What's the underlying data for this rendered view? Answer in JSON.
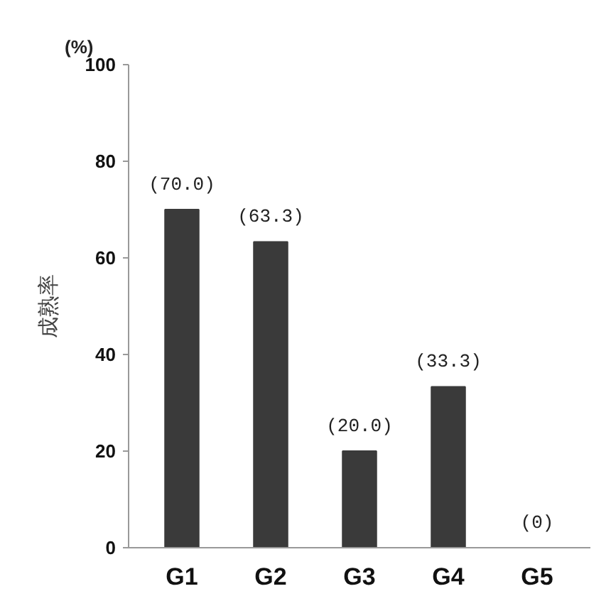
{
  "chart_data": {
    "type": "bar",
    "ylabel": "成熟率",
    "annotations": [
      "(%)"
    ],
    "categories": [
      "G1",
      "G2",
      "G3",
      "G4",
      "G5"
    ],
    "values": [
      70.0,
      63.3,
      20.0,
      33.3,
      0
    ],
    "value_labels": [
      "(70.0)",
      "(63.3)",
      "(20.0)",
      "(33.3)",
      "(0)"
    ],
    "color": "#3a3a3a",
    "ylim": [
      0,
      100
    ],
    "yticks": [
      0,
      20,
      40,
      60,
      80,
      100
    ],
    "grid": false
  }
}
